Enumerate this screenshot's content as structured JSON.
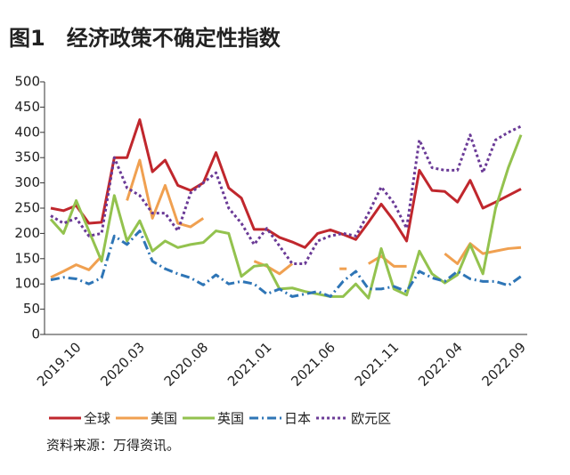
{
  "chart_data": {
    "type": "line",
    "title": "图1　经济政策不确定性指数",
    "source": "资料来源：万得资讯。",
    "categories": [
      null,
      null,
      "2019.10",
      null,
      null,
      null,
      null,
      "2020.03",
      null,
      null,
      null,
      null,
      "2020.08",
      null,
      null,
      null,
      null,
      "2021.01",
      null,
      null,
      null,
      null,
      "2021.06",
      null,
      null,
      null,
      null,
      "2021.11",
      null,
      null,
      null,
      null,
      "2022.04",
      null,
      null,
      null,
      null,
      "2022.09"
    ],
    "ylim": [
      0,
      500
    ],
    "yticks": [
      0,
      50,
      100,
      150,
      200,
      250,
      300,
      350,
      400,
      450,
      500
    ],
    "grid": false,
    "series": [
      {
        "name": "全球",
        "color": "#c0272d",
        "style": "solid",
        "values": [
          250,
          245,
          255,
          220,
          222,
          350,
          350,
          425,
          322,
          345,
          295,
          285,
          300,
          360,
          290,
          270,
          208,
          208,
          192,
          183,
          172,
          200,
          207,
          198,
          188,
          222,
          258,
          225,
          185,
          325,
          285,
          283,
          262,
          305,
          250,
          262,
          275,
          288
        ]
      },
      {
        "name": "美国",
        "color": "#f0a050",
        "style": "solid",
        "values": [
          113,
          125,
          138,
          128,
          155,
          null,
          265,
          345,
          230,
          295,
          220,
          213,
          230,
          null,
          null,
          null,
          145,
          135,
          120,
          140,
          null,
          null,
          null,
          130,
          null,
          140,
          155,
          135,
          135,
          null,
          null,
          160,
          140,
          180,
          160,
          165,
          170,
          172
        ]
      },
      {
        "name": "英国",
        "color": "#93c24e",
        "style": "solid",
        "values": [
          228,
          200,
          265,
          205,
          145,
          275,
          185,
          225,
          165,
          185,
          172,
          178,
          182,
          205,
          200,
          115,
          135,
          138,
          90,
          92,
          85,
          80,
          75,
          75,
          100,
          72,
          170,
          90,
          78,
          165,
          120,
          102,
          118,
          178,
          120,
          250,
          330,
          395
        ]
      },
      {
        "name": "日本",
        "color": "#2e75b6",
        "style": "dashdot",
        "values": [
          108,
          113,
          110,
          100,
          112,
          195,
          178,
          205,
          145,
          130,
          120,
          112,
          98,
          118,
          100,
          105,
          100,
          80,
          90,
          75,
          80,
          85,
          75,
          105,
          125,
          90,
          90,
          95,
          85,
          125,
          112,
          105,
          125,
          110,
          105,
          105,
          97,
          115
        ]
      },
      {
        "name": "欧元区",
        "color": "#6a3a96",
        "style": "dotted",
        "values": [
          235,
          220,
          230,
          195,
          200,
          350,
          290,
          275,
          240,
          240,
          205,
          280,
          300,
          320,
          250,
          220,
          178,
          210,
          175,
          140,
          140,
          185,
          195,
          200,
          195,
          240,
          292,
          260,
          210,
          385,
          330,
          325,
          325,
          395,
          320,
          385,
          400,
          412
        ]
      }
    ]
  }
}
